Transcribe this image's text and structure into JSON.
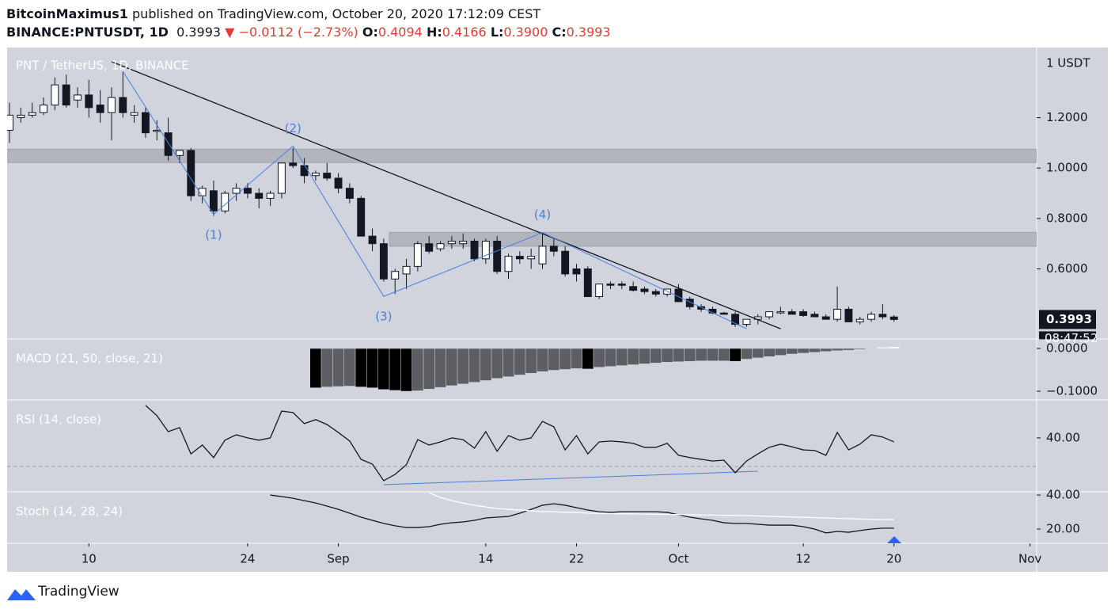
{
  "header": {
    "author": "BitcoinMaximus1",
    "published": "published on TradingView.com, October 20, 2020 17:12:09 CEST",
    "symbol": "BINANCE:PNTUSDT, 1D",
    "last": "0.3993",
    "arrow": "▼",
    "change": "−0.0112 (−2.73%)",
    "o_label": "O:",
    "o": "0.4094",
    "h_label": "H:",
    "h": "0.4166",
    "l_label": "L:",
    "l": "0.3900",
    "c_label": "C:",
    "c": "0.3993"
  },
  "footer": {
    "brand": "TradingView"
  },
  "chart_data": {
    "type": "candlestick",
    "title": "PNT / TetherUS, 1D, BINANCE",
    "unit_label": "1 USDT",
    "countdown": "08:47:52",
    "up_color": "#ffffff",
    "down_color": "#131722",
    "x": [
      "2020-08-03",
      "2020-08-04",
      "2020-08-05",
      "2020-08-06",
      "2020-08-07",
      "2020-08-08",
      "2020-08-09",
      "2020-08-10",
      "2020-08-11",
      "2020-08-12",
      "2020-08-13",
      "2020-08-14",
      "2020-08-15",
      "2020-08-16",
      "2020-08-17",
      "2020-08-18",
      "2020-08-19",
      "2020-08-20",
      "2020-08-21",
      "2020-08-22",
      "2020-08-23",
      "2020-08-24",
      "2020-08-25",
      "2020-08-26",
      "2020-08-27",
      "2020-08-28",
      "2020-08-29",
      "2020-08-30",
      "2020-08-31",
      "2020-09-01",
      "2020-09-02",
      "2020-09-03",
      "2020-09-04",
      "2020-09-05",
      "2020-09-06",
      "2020-09-07",
      "2020-09-08",
      "2020-09-09",
      "2020-09-10",
      "2020-09-11",
      "2020-09-12",
      "2020-09-13",
      "2020-09-14",
      "2020-09-15",
      "2020-09-16",
      "2020-09-17",
      "2020-09-18",
      "2020-09-19",
      "2020-09-20",
      "2020-09-21",
      "2020-09-22",
      "2020-09-23",
      "2020-09-24",
      "2020-09-25",
      "2020-09-26",
      "2020-09-27",
      "2020-09-28",
      "2020-09-29",
      "2020-09-30",
      "2020-10-01",
      "2020-10-02",
      "2020-10-03",
      "2020-10-04",
      "2020-10-05",
      "2020-10-06",
      "2020-10-07",
      "2020-10-08",
      "2020-10-09",
      "2020-10-10",
      "2020-10-11",
      "2020-10-12",
      "2020-10-13",
      "2020-10-14",
      "2020-10-15",
      "2020-10-16",
      "2020-10-17",
      "2020-10-18",
      "2020-10-19",
      "2020-10-20"
    ],
    "open": [
      1.15,
      1.2,
      1.21,
      1.22,
      1.25,
      1.33,
      1.27,
      1.29,
      1.25,
      1.22,
      1.28,
      1.21,
      1.22,
      1.15,
      1.14,
      1.05,
      1.07,
      0.89,
      0.91,
      0.83,
      0.9,
      0.92,
      0.9,
      0.88,
      0.9,
      1.02,
      1.01,
      0.97,
      0.98,
      0.96,
      0.92,
      0.88,
      0.73,
      0.7,
      0.56,
      0.58,
      0.61,
      0.7,
      0.68,
      0.7,
      0.7,
      0.71,
      0.64,
      0.71,
      0.59,
      0.65,
      0.64,
      0.62,
      0.69,
      0.67,
      0.6,
      0.6,
      0.49,
      0.54,
      0.54,
      0.53,
      0.52,
      0.51,
      0.5,
      0.52,
      0.48,
      0.45,
      0.44,
      0.425,
      0.42,
      0.38,
      0.4,
      0.41,
      0.43,
      0.43,
      0.43,
      0.42,
      0.41,
      0.4,
      0.44,
      0.39,
      0.4,
      0.42,
      0.4094
    ],
    "high": [
      1.26,
      1.24,
      1.26,
      1.28,
      1.36,
      1.37,
      1.32,
      1.35,
      1.31,
      1.32,
      1.38,
      1.25,
      1.24,
      1.19,
      1.2,
      1.07,
      1.08,
      0.93,
      0.95,
      0.91,
      0.94,
      0.94,
      0.92,
      0.91,
      1.02,
      1.08,
      1.04,
      0.99,
      1.02,
      0.98,
      0.94,
      0.89,
      0.76,
      0.72,
      0.6,
      0.64,
      0.71,
      0.73,
      0.71,
      0.73,
      0.74,
      0.72,
      0.72,
      0.73,
      0.66,
      0.67,
      0.68,
      0.74,
      0.72,
      0.69,
      0.62,
      0.61,
      0.54,
      0.55,
      0.55,
      0.55,
      0.53,
      0.52,
      0.52,
      0.54,
      0.49,
      0.46,
      0.45,
      0.43,
      0.43,
      0.4,
      0.42,
      0.43,
      0.45,
      0.44,
      0.44,
      0.43,
      0.42,
      0.53,
      0.45,
      0.41,
      0.43,
      0.46,
      0.4166
    ],
    "low": [
      1.1,
      1.18,
      1.2,
      1.21,
      1.23,
      1.24,
      1.24,
      1.2,
      1.18,
      1.11,
      1.2,
      1.18,
      1.12,
      1.11,
      1.03,
      1.02,
      0.87,
      0.86,
      0.81,
      0.82,
      0.87,
      0.88,
      0.84,
      0.85,
      0.88,
      1.0,
      0.94,
      0.95,
      0.95,
      0.9,
      0.86,
      0.73,
      0.67,
      0.55,
      0.5,
      0.52,
      0.59,
      0.66,
      0.67,
      0.68,
      0.68,
      0.63,
      0.62,
      0.58,
      0.56,
      0.62,
      0.6,
      0.6,
      0.65,
      0.57,
      0.55,
      0.49,
      0.48,
      0.52,
      0.52,
      0.51,
      0.5,
      0.49,
      0.49,
      0.47,
      0.44,
      0.43,
      0.42,
      0.42,
      0.37,
      0.37,
      0.38,
      0.4,
      0.42,
      0.42,
      0.41,
      0.41,
      0.4,
      0.39,
      0.39,
      0.38,
      0.39,
      0.4,
      0.39
    ],
    "close": [
      1.21,
      1.21,
      1.22,
      1.25,
      1.33,
      1.25,
      1.29,
      1.24,
      1.22,
      1.28,
      1.22,
      1.22,
      1.14,
      1.15,
      1.05,
      1.07,
      0.89,
      0.92,
      0.83,
      0.9,
      0.92,
      0.9,
      0.88,
      0.9,
      1.02,
      1.01,
      0.97,
      0.98,
      0.96,
      0.92,
      0.88,
      0.73,
      0.7,
      0.56,
      0.59,
      0.61,
      0.7,
      0.67,
      0.7,
      0.71,
      0.71,
      0.64,
      0.71,
      0.59,
      0.65,
      0.64,
      0.65,
      0.69,
      0.67,
      0.58,
      0.58,
      0.49,
      0.54,
      0.535,
      0.535,
      0.515,
      0.51,
      0.5,
      0.52,
      0.47,
      0.45,
      0.44,
      0.425,
      0.42,
      0.38,
      0.4,
      0.41,
      0.43,
      0.43,
      0.42,
      0.415,
      0.41,
      0.4,
      0.44,
      0.39,
      0.4,
      0.42,
      0.41,
      0.3993
    ],
    "xlim": [
      "2020-08-03",
      "2020-11-02"
    ],
    "xticks": [
      {
        "value": "2020-08-10",
        "label": "10"
      },
      {
        "value": "2020-08-24",
        "label": "24"
      },
      {
        "value": "2020-09-01",
        "label": "Sep"
      },
      {
        "value": "2020-09-14",
        "label": "14"
      },
      {
        "value": "2020-09-22",
        "label": "22"
      },
      {
        "value": "2020-10-01",
        "label": "Oct"
      },
      {
        "value": "2020-10-12",
        "label": "12"
      },
      {
        "value": "2020-10-20",
        "label": "20"
      },
      {
        "value": "2020-11-01",
        "label": "Nov"
      }
    ],
    "ylim": [
      0.322,
      1.472
    ],
    "yticks": [
      {
        "value": 1.2,
        "label": "1.2000"
      },
      {
        "value": 1.0,
        "label": "1.0000"
      },
      {
        "value": 0.8,
        "label": "0.8000"
      },
      {
        "value": 0.6,
        "label": "0.6000"
      }
    ],
    "zones": [
      {
        "from": 1.022,
        "to": 1.075,
        "start": "2020-08-03"
      },
      {
        "from": 0.69,
        "to": 0.745,
        "start": "2020-09-06"
      }
    ],
    "trendline": {
      "color": "#131722",
      "x": [
        "2020-08-12",
        "2020-10-10"
      ],
      "y": [
        1.422,
        0.3625
      ]
    },
    "wave": {
      "color": "#4a7fe0",
      "x": [
        "2020-08-13",
        "2020-08-21",
        "2020-08-28",
        "2020-09-05",
        "2020-09-19",
        "2020-10-07"
      ],
      "y": [
        1.384,
        0.816,
        1.0875,
        0.491,
        0.744,
        0.3625
      ],
      "labels": [
        null,
        "(1)",
        "(2)",
        "(3)",
        "(4)",
        null
      ]
    },
    "indicators": [
      {
        "type": "bar",
        "title": "MACD (21, 50, close, 21)",
        "ylim": [
          -0.1204,
          0.0222
        ],
        "yticks": [
          {
            "value": 0,
            "label": "0.0000"
          },
          {
            "value": -0.1,
            "label": "−0.1000"
          }
        ],
        "colors": {
          "falling": "#000000",
          "rising": "#5d5e63",
          "positive": "#ffffff"
        },
        "values": [
          null,
          null,
          null,
          null,
          null,
          null,
          null,
          null,
          null,
          null,
          null,
          null,
          null,
          null,
          null,
          null,
          null,
          null,
          null,
          null,
          null,
          null,
          null,
          null,
          null,
          null,
          null,
          -0.092,
          -0.09,
          -0.089,
          -0.088,
          -0.09,
          -0.092,
          -0.096,
          -0.098,
          -0.1,
          -0.099,
          -0.095,
          -0.091,
          -0.087,
          -0.083,
          -0.079,
          -0.075,
          -0.07,
          -0.066,
          -0.062,
          -0.058,
          -0.054,
          -0.051,
          -0.049,
          -0.047,
          -0.048,
          -0.044,
          -0.042,
          -0.04,
          -0.038,
          -0.036,
          -0.034,
          -0.032,
          -0.031,
          -0.03,
          -0.029,
          -0.029,
          -0.029,
          -0.03,
          -0.025,
          -0.022,
          -0.019,
          -0.016,
          -0.013,
          -0.011,
          -0.009,
          -0.007,
          -0.005,
          -0.004,
          -0.002,
          0.001,
          0.003,
          0.004
        ]
      },
      {
        "type": "line",
        "title": "RSI (14, close)",
        "ylim": [
          21.1,
          53.3
        ],
        "yticks": [
          {
            "value": 40,
            "label": "40.00"
          }
        ],
        "hline": 30,
        "series": [
          {
            "color": "#131722",
            "values": [
              null,
              null,
              null,
              null,
              null,
              null,
              null,
              null,
              null,
              null,
              null,
              null,
              51.4,
              47.8,
              42.2,
              43.6,
              34.4,
              37.5,
              33.1,
              39.2,
              41.1,
              40.0,
              39.2,
              40.0,
              49.4,
              48.9,
              45.0,
              46.4,
              44.7,
              41.9,
              38.9,
              32.5,
              30.8,
              25.0,
              27.2,
              30.6,
              39.4,
              37.5,
              38.6,
              40.0,
              39.4,
              36.4,
              42.2,
              35.3,
              40.8,
              39.2,
              40.0,
              45.8,
              43.9,
              35.8,
              40.8,
              34.4,
              38.6,
              38.9,
              38.6,
              38.1,
              36.7,
              36.7,
              38.1,
              33.9,
              33.1,
              32.5,
              31.9,
              32.2,
              27.8,
              31.9,
              34.4,
              36.7,
              37.8,
              36.9,
              35.8,
              35.6,
              33.9,
              41.9,
              35.8,
              37.8,
              41.1,
              40.3,
              38.6
            ]
          }
        ],
        "trendline": {
          "color": "#4a7fe0",
          "x": [
            "2020-09-05",
            "2020-10-08"
          ],
          "y": [
            23.6,
            28.3
          ]
        }
      },
      {
        "type": "line",
        "title": "Stoch (14, 28, 24)",
        "ylim": [
          11.6,
          41.9
        ],
        "yticks": [
          {
            "value": 40,
            "label": "40.00"
          },
          {
            "value": 20,
            "label": "20.00"
          }
        ],
        "series": [
          {
            "color": "#131722",
            "values": [
              null,
              null,
              null,
              null,
              null,
              null,
              null,
              null,
              null,
              null,
              null,
              null,
              null,
              null,
              null,
              null,
              null,
              null,
              null,
              null,
              null,
              null,
              null,
              40.0,
              39.1,
              38.1,
              36.7,
              35.3,
              33.5,
              31.6,
              29.3,
              27.0,
              25.1,
              23.3,
              21.9,
              20.9,
              20.9,
              21.4,
              22.8,
              23.7,
              24.2,
              25.1,
              26.5,
              27.0,
              27.4,
              29.3,
              31.6,
              34.0,
              34.9,
              34.0,
              32.6,
              31.2,
              30.2,
              29.8,
              30.2,
              30.2,
              30.2,
              30.2,
              29.8,
              28.4,
              27.0,
              26.0,
              25.1,
              23.7,
              23.3,
              23.3,
              22.8,
              22.3,
              22.3,
              22.3,
              21.4,
              20.0,
              17.7,
              18.6,
              18.1,
              19.1,
              20.0,
              20.5,
              20.5
            ]
          },
          {
            "color": "#ffffff",
            "values": [
              null,
              null,
              null,
              null,
              null,
              null,
              null,
              null,
              null,
              null,
              null,
              null,
              null,
              null,
              null,
              null,
              null,
              null,
              null,
              null,
              null,
              null,
              null,
              null,
              null,
              null,
              null,
              null,
              null,
              null,
              null,
              null,
              null,
              null,
              null,
              null,
              null,
              41.4,
              38.6,
              36.7,
              35.3,
              34.0,
              33.0,
              32.1,
              31.6,
              31.2,
              30.7,
              30.2,
              30.2,
              29.8,
              29.8,
              29.3,
              29.2,
              29.1,
              29.0,
              28.9,
              28.8,
              28.7,
              28.6,
              28.5,
              28.4,
              28.3,
              28.2,
              28.1,
              28.0,
              27.9,
              27.7,
              27.5,
              27.3,
              27.1,
              26.9,
              26.7,
              26.5,
              26.3,
              26.1,
              25.9,
              25.7,
              25.6,
              25.5
            ]
          }
        ]
      }
    ]
  }
}
